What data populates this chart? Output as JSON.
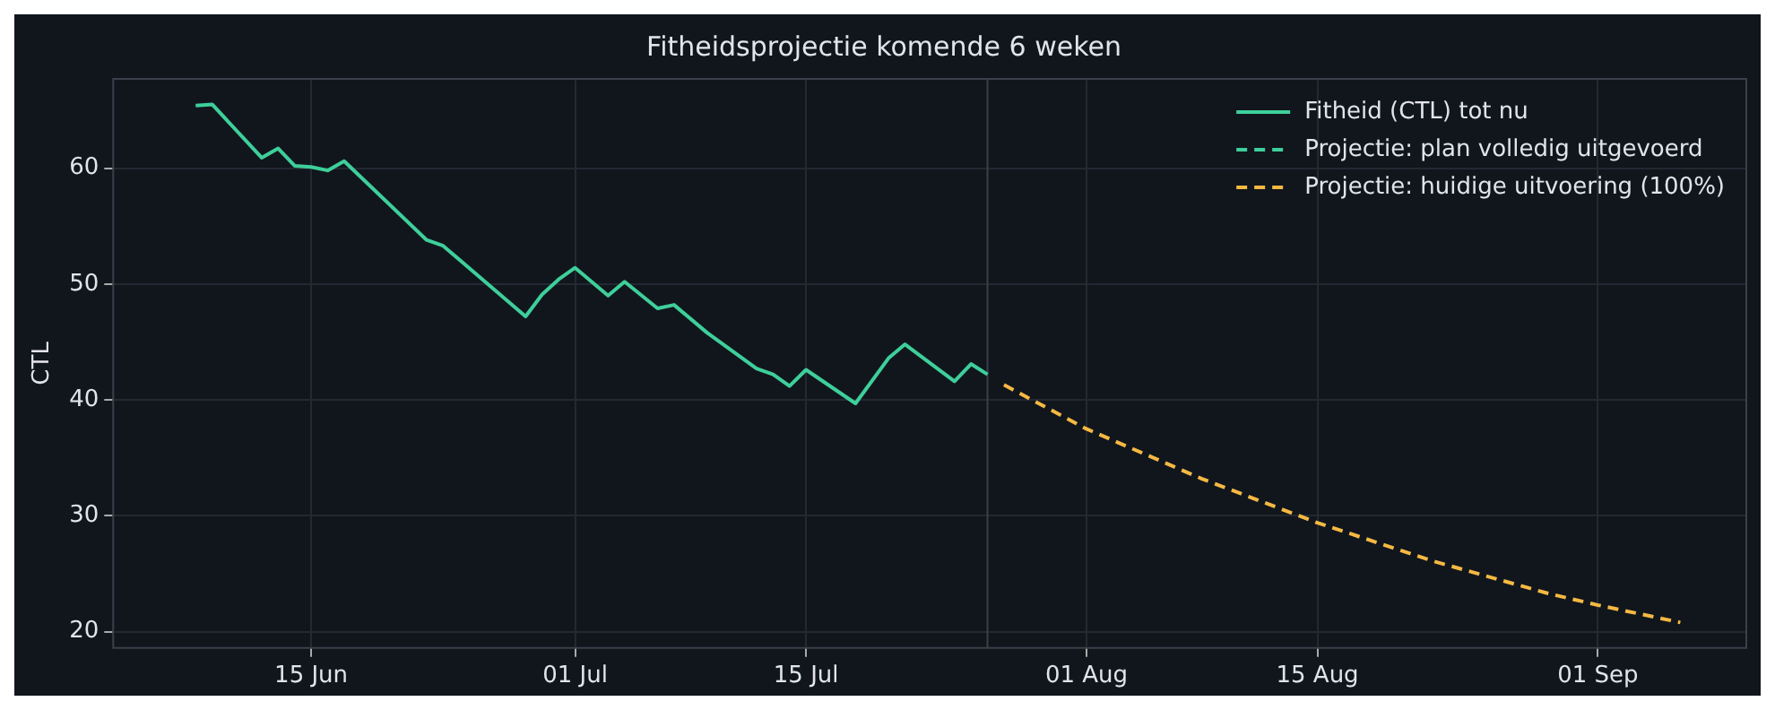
{
  "chart_data": {
    "type": "line",
    "title": "Fitheidsprojectie komende 6 weken",
    "ylabel": "CTL",
    "xlim": [
      "--06-03",
      "--09-10"
    ],
    "xticks": [
      {
        "value": "--06-15",
        "label": "15 Jun"
      },
      {
        "value": "--07-01",
        "label": "01 Jul"
      },
      {
        "value": "--07-15",
        "label": "15 Jul"
      },
      {
        "value": "--08-01",
        "label": "01 Aug"
      },
      {
        "value": "--08-15",
        "label": "15 Aug"
      },
      {
        "value": "--09-01",
        "label": "01 Sep"
      }
    ],
    "ylim": [
      18.6,
      67.7
    ],
    "yticks": [
      20,
      30,
      40,
      50,
      60
    ],
    "grid": true,
    "legend": "top right",
    "marker": "none",
    "ref_lines": [
      {
        "axis": "x",
        "value": "--07-26",
        "color": "#3a404a"
      }
    ],
    "series": [
      {
        "name": "Fitheid (CTL) tot nu",
        "color": "#3ecf9a",
        "line_style": "solid",
        "x": [
          "--06-08",
          "--06-09",
          "--06-12",
          "--06-13",
          "--06-14",
          "--06-15",
          "--06-16",
          "--06-17",
          "--06-22",
          "--06-23",
          "--06-28",
          "--06-29",
          "--06-30",
          "--07-01",
          "--07-03",
          "--07-04",
          "--07-06",
          "--07-07",
          "--07-09",
          "--07-12",
          "--07-13",
          "--07-14",
          "--07-15",
          "--07-18",
          "--07-20",
          "--07-21",
          "--07-24",
          "--07-25",
          "--07-26"
        ],
        "values": [
          65.4,
          65.5,
          60.9,
          61.7,
          60.2,
          60.1,
          59.8,
          60.6,
          53.8,
          53.3,
          47.2,
          49.1,
          50.4,
          51.4,
          49.0,
          50.2,
          47.9,
          48.2,
          45.8,
          42.7,
          42.2,
          41.2,
          42.6,
          39.7,
          43.6,
          44.8,
          41.6,
          43.1,
          42.2
        ]
      },
      {
        "name": "Projectie: plan volledig uitgevoerd",
        "color": "#3ecf9a",
        "line_style": "dashed"
      },
      {
        "name": "Projectie: huidige uitvoering (100%)",
        "color": "#f5b942",
        "line_style": "dashed",
        "x": [
          "--07-27",
          "--08-01",
          "--08-08",
          "--08-15",
          "--08-22",
          "--08-29",
          "--09-01",
          "--09-06"
        ],
        "values": [
          41.3,
          37.5,
          33.2,
          29.4,
          26.1,
          23.3,
          22.3,
          20.8
        ]
      }
    ]
  }
}
